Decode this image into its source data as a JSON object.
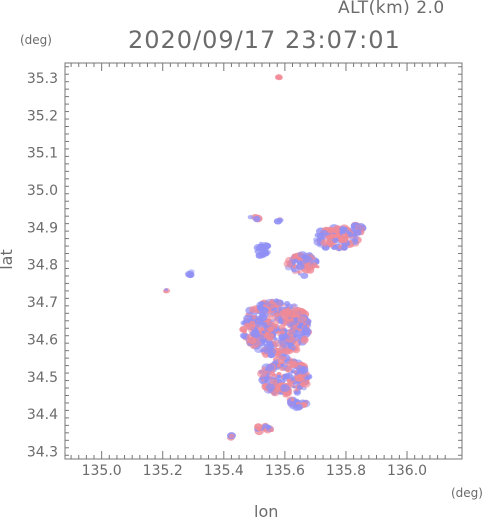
{
  "header": {
    "altitude": "ALT(km) 2.0",
    "timestamp": "2020/09/17 23:07:01"
  },
  "units": {
    "y_unit": "(deg)",
    "x_unit": "(deg)"
  },
  "axes": {
    "xlabel": "lon",
    "ylabel": "lat",
    "x_ticks": [
      "135.0",
      "135.2",
      "135.4",
      "135.6",
      "135.8",
      "136.0"
    ],
    "y_ticks": [
      "35.3",
      "35.2",
      "35.1",
      "35.0",
      "34.9",
      "34.8",
      "34.7",
      "34.6",
      "34.5",
      "34.4",
      "34.3"
    ],
    "xlim": [
      134.88,
      136.18
    ],
    "ylim": [
      34.28,
      35.34
    ]
  },
  "colors": {
    "positive": "#f08a96",
    "negative": "#8f8ff5",
    "axis": "#777777"
  },
  "echo_clusters": [
    {
      "lon": 135.58,
      "lat": 35.3,
      "w": 0.008,
      "h": 0.004,
      "polarity": "positive"
    },
    {
      "lon": 135.5,
      "lat": 34.925,
      "w": 0.03,
      "h": 0.01,
      "polarity": "mixed"
    },
    {
      "lon": 135.58,
      "lat": 34.92,
      "w": 0.02,
      "h": 0.008,
      "polarity": "mixed"
    },
    {
      "lon": 135.77,
      "lat": 34.87,
      "w": 0.14,
      "h": 0.06,
      "polarity": "mixed"
    },
    {
      "lon": 135.84,
      "lat": 34.9,
      "w": 0.03,
      "h": 0.04,
      "polarity": "mixed"
    },
    {
      "lon": 135.53,
      "lat": 34.84,
      "w": 0.04,
      "h": 0.04,
      "polarity": "negative"
    },
    {
      "lon": 135.66,
      "lat": 34.8,
      "w": 0.1,
      "h": 0.06,
      "polarity": "mixed"
    },
    {
      "lon": 135.29,
      "lat": 34.78,
      "w": 0.012,
      "h": 0.02,
      "polarity": "negative"
    },
    {
      "lon": 135.21,
      "lat": 34.73,
      "w": 0.01,
      "h": 0.01,
      "polarity": "mixed"
    },
    {
      "lon": 135.57,
      "lat": 34.63,
      "w": 0.22,
      "h": 0.15,
      "polarity": "mixed"
    },
    {
      "lon": 135.6,
      "lat": 34.5,
      "w": 0.16,
      "h": 0.1,
      "polarity": "mixed"
    },
    {
      "lon": 135.64,
      "lat": 34.43,
      "w": 0.06,
      "h": 0.03,
      "polarity": "mixed"
    },
    {
      "lon": 135.53,
      "lat": 34.36,
      "w": 0.06,
      "h": 0.02,
      "polarity": "mixed"
    },
    {
      "lon": 135.42,
      "lat": 34.34,
      "w": 0.03,
      "h": 0.006,
      "polarity": "mixed"
    }
  ]
}
